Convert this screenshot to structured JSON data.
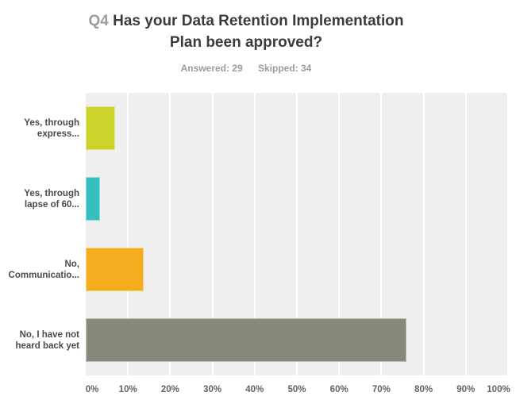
{
  "header": {
    "question_number": "Q4",
    "title_line1_rest": "Has your Data Retention Implementation",
    "title_line2": "Plan been approved?",
    "answered": "Answered: 29",
    "skipped": "Skipped: 34"
  },
  "chart_data": {
    "type": "bar",
    "orientation": "horizontal",
    "title": "Q4 Has your Data Retention Implementation Plan been approved?",
    "answered_count": 29,
    "skipped_count": 34,
    "categories": [
      "Yes, through express...",
      "Yes, through lapse of 60...",
      "No, Communicatio...",
      "No, I have not heard back yet"
    ],
    "category_label_lines": [
      [
        "Yes, through",
        "express..."
      ],
      [
        "Yes, through",
        "lapse of 60..."
      ],
      [
        "No,",
        "Communicatio..."
      ],
      [
        "No, I have not",
        "heard back yet"
      ]
    ],
    "values": [
      6.9,
      3.45,
      13.79,
      75.86
    ],
    "bar_colors": [
      "#ccd22c",
      "#35bfbf",
      "#f5ad1f",
      "#87897b"
    ],
    "x_ticks": [
      "0%",
      "10%",
      "20%",
      "30%",
      "40%",
      "50%",
      "60%",
      "70%",
      "80%",
      "90%",
      "100%"
    ],
    "xlabel": "",
    "ylabel": "",
    "xlim": [
      0,
      100
    ],
    "grid": true,
    "legend": "none",
    "plot_background": "#efefef",
    "gridline_color": "#ffffff",
    "muted_text_color": "#9b9b9b",
    "title_text_color": "#3b3b3b"
  }
}
